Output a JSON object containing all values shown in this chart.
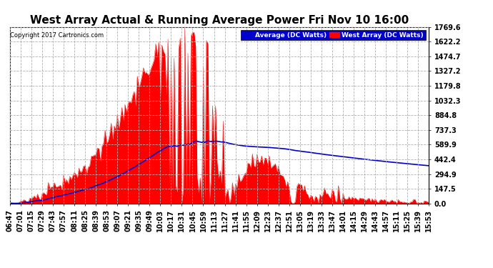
{
  "title": "West Array Actual & Running Average Power Fri Nov 10 16:00",
  "copyright": "Copyright 2017 Cartronics.com",
  "legend_avg": "Average (DC Watts)",
  "legend_west": "West Array (DC Watts)",
  "ymax": 1769.6,
  "yticks": [
    0.0,
    147.5,
    294.9,
    442.4,
    589.9,
    737.3,
    884.8,
    1032.3,
    1179.8,
    1327.2,
    1474.7,
    1622.2,
    1769.6
  ],
  "background_color": "#ffffff",
  "plot_bg_color": "#ffffff",
  "grid_color": "#b0b0b0",
  "area_color": "#ff0000",
  "avg_line_color": "#0000cc",
  "title_fontsize": 11,
  "axis_fontsize": 7
}
